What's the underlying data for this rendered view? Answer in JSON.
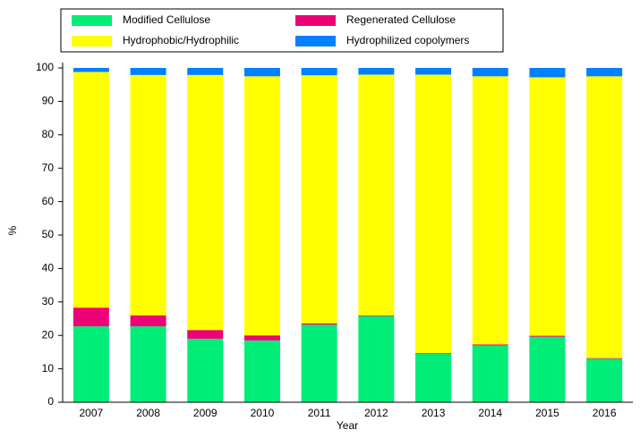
{
  "chart_data": {
    "type": "stacked_bar",
    "x_label": "Year",
    "y_label": "%",
    "categories": [
      "2007",
      "2008",
      "2009",
      "2010",
      "2011",
      "2012",
      "2013",
      "2014",
      "2015",
      "2016"
    ],
    "series": [
      {
        "name": "Modified Cellulose",
        "color": "#00ee77",
        "values": [
          22.7,
          22.7,
          19.0,
          18.5,
          23.2,
          25.8,
          14.5,
          17.0,
          19.6,
          13.0
        ]
      },
      {
        "name": "Regenerated Cellulose",
        "color": "#ee0077",
        "values": [
          5.6,
          3.3,
          2.6,
          1.5,
          0.4,
          0.2,
          0.2,
          0.3,
          0.3,
          0.2
        ]
      },
      {
        "name": "Hydrophobic/Hydrophilic",
        "color": "#ffff00",
        "values": [
          70.5,
          71.9,
          76.3,
          77.5,
          74.2,
          72.0,
          83.3,
          80.2,
          77.3,
          84.3
        ]
      },
      {
        "name": "Hydrophilized copolymers",
        "color": "#0080ff",
        "values": [
          1.2,
          2.1,
          2.1,
          2.5,
          2.2,
          2.0,
          2.0,
          2.5,
          2.8,
          2.5
        ]
      }
    ],
    "ylim": [
      0,
      100
    ],
    "yticks": [
      0,
      10,
      20,
      30,
      40,
      50,
      60,
      70,
      80,
      90,
      100
    ]
  }
}
